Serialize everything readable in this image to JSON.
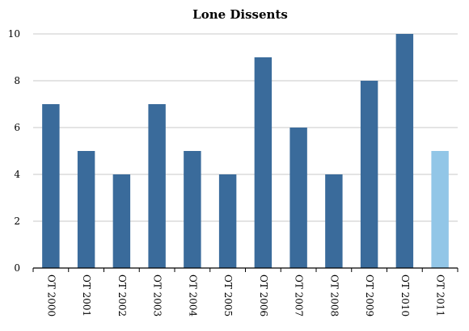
{
  "chart_data": {
    "type": "bar",
    "title": "Lone Dissents",
    "xlabel": "",
    "ylabel": "",
    "categories": [
      "OT 2000",
      "OT 2001",
      "OT 2002",
      "OT 2003",
      "OT 2004",
      "OT 2005",
      "OT 2006",
      "OT 2007",
      "OT 2008",
      "OT 2009",
      "OT 2010",
      "OT 2011"
    ],
    "values": [
      7,
      5,
      4,
      7,
      5,
      4,
      9,
      6,
      4,
      8,
      10,
      5
    ],
    "ylim": [
      0,
      10
    ],
    "yticks": [
      0,
      2,
      4,
      6,
      8,
      10
    ],
    "grid": true,
    "legend": "none",
    "colors": {
      "bar": "#3a6b9b",
      "highlight_bar": "#92c6e7",
      "grid": "#c8c8c8",
      "axis": "#000000"
    },
    "highlight_categories": [
      "OT 2011"
    ]
  }
}
